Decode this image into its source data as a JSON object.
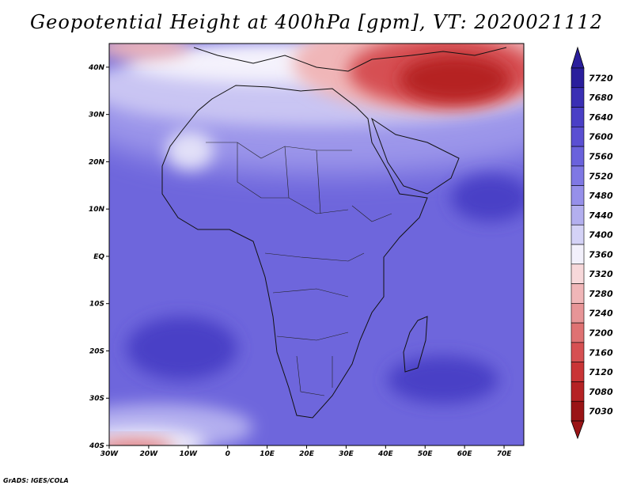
{
  "title": "Geopotential Height at 400hPa [gpm], VT: 2020021112",
  "credit": "GrADS: IGES/COLA",
  "map": {
    "lon_range": [
      -30,
      75
    ],
    "lat_range": [
      -40,
      45
    ],
    "lat_ticks": [
      {
        "value": 40,
        "label": "40N"
      },
      {
        "value": 30,
        "label": "30N"
      },
      {
        "value": 20,
        "label": "20N"
      },
      {
        "value": 10,
        "label": "10N"
      },
      {
        "value": 0,
        "label": "EQ"
      },
      {
        "value": -10,
        "label": "10S"
      },
      {
        "value": -20,
        "label": "20S"
      },
      {
        "value": -30,
        "label": "30S"
      },
      {
        "value": -40,
        "label": "40S"
      }
    ],
    "lon_ticks": [
      {
        "value": -30,
        "label": "30W"
      },
      {
        "value": -20,
        "label": "20W"
      },
      {
        "value": -10,
        "label": "10W"
      },
      {
        "value": 0,
        "label": "0"
      },
      {
        "value": 10,
        "label": "10E"
      },
      {
        "value": 20,
        "label": "20E"
      },
      {
        "value": 30,
        "label": "30E"
      },
      {
        "value": 40,
        "label": "40E"
      },
      {
        "value": 50,
        "label": "50E"
      },
      {
        "value": 60,
        "label": "60E"
      },
      {
        "value": 70,
        "label": "70E"
      }
    ]
  },
  "colorbar": {
    "labels": [
      "7720",
      "7680",
      "7640",
      "7600",
      "7560",
      "7520",
      "7480",
      "7440",
      "7400",
      "7360",
      "7320",
      "7280",
      "7240",
      "7200",
      "7160",
      "7120",
      "7080",
      "7030"
    ],
    "colors": [
      "#2a1e9c",
      "#3a2fb4",
      "#4a3fc6",
      "#5a4fd2",
      "#6a62dc",
      "#7f78e4",
      "#9690ea",
      "#b3afef",
      "#d4d2f6",
      "#f2f0fb",
      "#f7d8da",
      "#f0b6b8",
      "#e79597",
      "#df7273",
      "#d65052",
      "#c93436",
      "#b52224",
      "#9a1416"
    ]
  }
}
